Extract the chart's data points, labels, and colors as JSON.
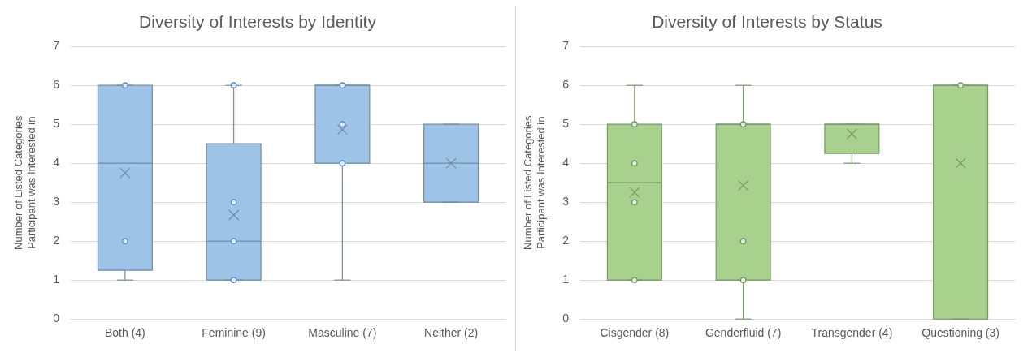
{
  "chart_data": [
    {
      "type": "box",
      "title": "Diversity of Interests by Identity",
      "ylabel": "Number of Listed Categories\nParticipant was Interested in",
      "categories": [
        "Both (4)",
        "Feminine (9)",
        "Masculine (7)",
        "Neither (2)"
      ],
      "ylim": [
        0,
        7
      ],
      "yticks": [
        0,
        1,
        2,
        3,
        4,
        5,
        6,
        7
      ],
      "grid": "y",
      "legend": false,
      "series": [
        {
          "type": "box",
          "color": "#9dc3e6",
          "boxes": [
            {
              "low": 1,
              "q1": 1.25,
              "median": 4,
              "q3": 6,
              "high": 6,
              "mean": 3.75
            },
            {
              "low": 1,
              "q1": 1,
              "median": 2,
              "q3": 4.5,
              "high": 6,
              "mean": 2.67
            },
            {
              "low": 1,
              "q1": 4,
              "median": 6,
              "q3": 6,
              "high": 6,
              "mean": 4.86
            },
            {
              "low": 3,
              "q1": 3,
              "median": 4,
              "q3": 5,
              "high": 5,
              "mean": 4
            }
          ]
        },
        {
          "type": "scatter",
          "color": "#5b8cc8",
          "marker": "circle",
          "x": [
            "Both (4)",
            "Both (4)",
            "Feminine (9)",
            "Feminine (9)",
            "Feminine (9)",
            "Feminine (9)",
            "Masculine (7)",
            "Masculine (7)",
            "Masculine (7)"
          ],
          "values": [
            6,
            2,
            6,
            3,
            2,
            1,
            6,
            5,
            4
          ]
        }
      ]
    },
    {
      "type": "box",
      "title": "Diversity of Interests by Status",
      "ylabel": "Number of Listed Categories\nParticipant was Interested in",
      "categories": [
        "Cisgender (8)",
        "Genderfluid (7)",
        "Transgender (4)",
        "Questioning (3)"
      ],
      "ylim": [
        0,
        7
      ],
      "yticks": [
        0,
        1,
        2,
        3,
        4,
        5,
        6,
        7
      ],
      "grid": "y",
      "legend": false,
      "series": [
        {
          "type": "box",
          "color": "#a9d18e",
          "boxes": [
            {
              "low": 1,
              "q1": 1,
              "median": 3.5,
              "q3": 5,
              "high": 6,
              "mean": 3.25
            },
            {
              "low": 0,
              "q1": 1,
              "median": 5,
              "q3": 5,
              "high": 6,
              "mean": 3.43
            },
            {
              "low": 4,
              "q1": 4.25,
              "median": 5,
              "q3": 5,
              "high": 5,
              "mean": 4.75
            },
            {
              "low": 0,
              "q1": 0,
              "median": 6,
              "q3": 6,
              "high": 6,
              "mean": 4
            }
          ]
        },
        {
          "type": "scatter",
          "color": "#6a9f48",
          "marker": "circle",
          "x": [
            "Cisgender (8)",
            "Cisgender (8)",
            "Cisgender (8)",
            "Cisgender (8)",
            "Genderfluid (7)",
            "Genderfluid (7)",
            "Genderfluid (7)",
            "Questioning (3)"
          ],
          "values": [
            5,
            4,
            3,
            1,
            5,
            2,
            1,
            6
          ]
        }
      ]
    }
  ]
}
